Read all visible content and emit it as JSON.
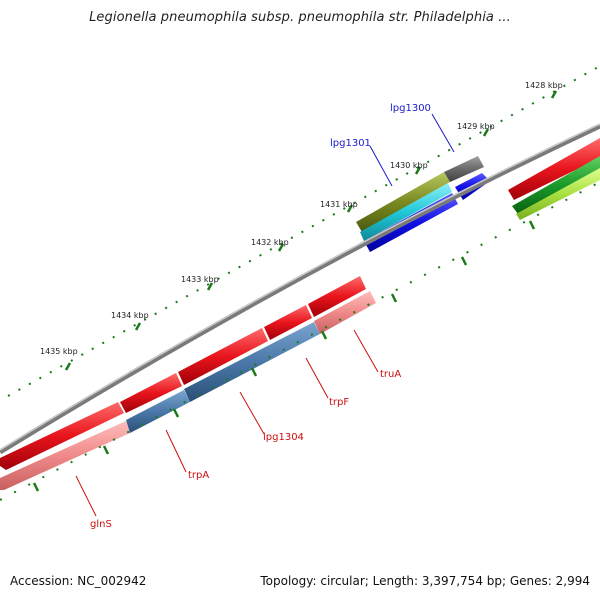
{
  "title": "Legionella pneumophila subsp. pneumophila str. Philadelphia ...",
  "footer": {
    "accession": "Accession: NC_002942",
    "summary": "Topology: circular; Length: 3,397,754 bp; Genes: 2,994"
  },
  "colors": {
    "backbone": "#7a7a7a",
    "forward_gene": "#e8141c",
    "reverse_gene": "#e8141c",
    "rna": "#f08a8a",
    "steelblue": "#4a78a8",
    "blue": "#1010e6",
    "cyan": "#20c8d8",
    "olive": "#7a8a20",
    "gray": "#6a6a6a",
    "green": "#1a9a2a",
    "yellowgreen": "#a8e040",
    "tick_green": "#1a7a1a",
    "label_forward": "#1a1acc",
    "label_reverse": "#cc1010"
  },
  "kbp_ticks": [
    "1428 kbp",
    "1429 kbp",
    "1430 kbp",
    "1431 kbp",
    "1432 kbp",
    "1433 kbp",
    "1434 kbp",
    "1435 kbp"
  ],
  "gene_labels": [
    {
      "id": "lpg1300",
      "text": "lpg1300",
      "strand": "forward"
    },
    {
      "id": "lpg1301",
      "text": "lpg1301",
      "strand": "forward"
    },
    {
      "id": "truA",
      "text": "truA",
      "strand": "reverse"
    },
    {
      "id": "trpF",
      "text": "trpF",
      "strand": "reverse"
    },
    {
      "id": "lpg1304",
      "text": "lpg1304",
      "strand": "reverse"
    },
    {
      "id": "trpA",
      "text": "trpA",
      "strand": "reverse"
    },
    {
      "id": "glnS",
      "text": "glnS",
      "strand": "reverse"
    }
  ]
}
